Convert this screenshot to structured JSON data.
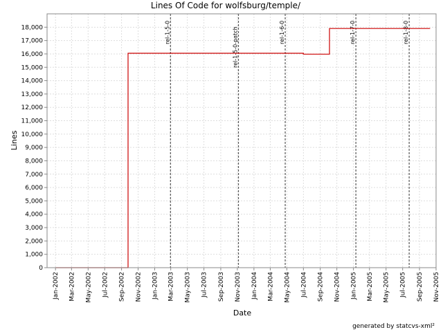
{
  "chart_data": {
    "type": "line",
    "title": "Lines Of Code for wolfsburg/temple/",
    "xlabel": "Date",
    "ylabel": "Lines",
    "ylim": [
      0,
      19000
    ],
    "x_range": [
      "2001-12-01",
      "2005-11-01"
    ],
    "grid": true,
    "legend": "none",
    "series_color": "#cc0000",
    "y_ticks": [
      "0",
      "1,000",
      "2,000",
      "3,000",
      "4,000",
      "5,000",
      "6,000",
      "7,000",
      "8,000",
      "9,000",
      "10,000",
      "11,000",
      "12,000",
      "13,000",
      "14,000",
      "15,000",
      "16,000",
      "17,000",
      "18,000"
    ],
    "x_ticks": [
      {
        "date": "2002-01-01",
        "label": "Jan-2002"
      },
      {
        "date": "2002-03-01",
        "label": "Mar-2002"
      },
      {
        "date": "2002-05-01",
        "label": "May-2002"
      },
      {
        "date": "2002-07-01",
        "label": "Jul-2002"
      },
      {
        "date": "2002-09-01",
        "label": "Sep-2002"
      },
      {
        "date": "2002-11-01",
        "label": "Nov-2002"
      },
      {
        "date": "2003-01-01",
        "label": "Jan-2003"
      },
      {
        "date": "2003-03-01",
        "label": "Mar-2003"
      },
      {
        "date": "2003-05-01",
        "label": "May-2003"
      },
      {
        "date": "2003-07-01",
        "label": "Jul-2003"
      },
      {
        "date": "2003-09-01",
        "label": "Sep-2003"
      },
      {
        "date": "2003-11-01",
        "label": "Nov-2003"
      },
      {
        "date": "2004-01-01",
        "label": "Jan-2004"
      },
      {
        "date": "2004-03-01",
        "label": "Mar-2004"
      },
      {
        "date": "2004-05-01",
        "label": "May-2004"
      },
      {
        "date": "2004-07-01",
        "label": "Jul-2004"
      },
      {
        "date": "2004-09-01",
        "label": "Sep-2004"
      },
      {
        "date": "2004-11-01",
        "label": "Nov-2004"
      },
      {
        "date": "2005-01-01",
        "label": "Jan-2005"
      },
      {
        "date": "2005-03-01",
        "label": "Mar-2005"
      },
      {
        "date": "2005-05-01",
        "label": "May-2005"
      },
      {
        "date": "2005-07-01",
        "label": "Jul-2005"
      },
      {
        "date": "2005-09-01",
        "label": "Sep-2005"
      },
      {
        "date": "2005-11-01",
        "label": "Nov-2005"
      }
    ],
    "series": [
      {
        "points": [
          {
            "x": "2002-01-01",
            "y": 0
          },
          {
            "x": "2002-09-25",
            "y": 0
          },
          {
            "x": "2002-09-25",
            "y": 16050
          },
          {
            "x": "2004-07-01",
            "y": 16050
          },
          {
            "x": "2004-07-01",
            "y": 15980
          },
          {
            "x": "2004-10-05",
            "y": 15980
          },
          {
            "x": "2004-10-05",
            "y": 17900
          },
          {
            "x": "2005-10-10",
            "y": 17900
          }
        ]
      }
    ],
    "release_markers": [
      {
        "date": "2003-02-28",
        "label": "rel-1-5-0",
        "label_position": "top"
      },
      {
        "date": "2003-11-05",
        "label": "rel-1-5-0-patch",
        "label_position": "below-line"
      },
      {
        "date": "2004-04-25",
        "label": "rel-1-6-0",
        "label_position": "top"
      },
      {
        "date": "2005-01-10",
        "label": "rel-1-7-0",
        "label_position": "top"
      },
      {
        "date": "2005-07-25",
        "label": "rel-1-8-0",
        "label_position": "top"
      }
    ]
  },
  "footer": "generated by statcvs-xml²"
}
